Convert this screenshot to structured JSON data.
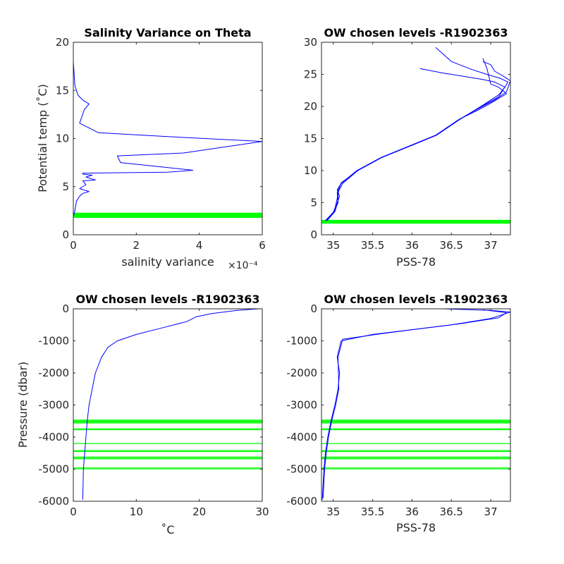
{
  "chart_data": [
    {
      "id": "p1",
      "type": "line",
      "title": "Salinity Variance on Theta",
      "xlabel": "salinity variance",
      "xlabel_exponent": "×10⁻⁴",
      "ylabel": "Potential temp (˚C)",
      "xlim": [
        0,
        6
      ],
      "ylim": [
        0,
        20
      ],
      "xticks": [
        0,
        2,
        4,
        6
      ],
      "xtick_labels": [
        "0",
        "2",
        "4",
        "6"
      ],
      "yticks": [
        0,
        5,
        10,
        15,
        20
      ],
      "ytick_labels": [
        "0",
        "5",
        "10",
        "15",
        "20"
      ],
      "line_color": "#0000ff",
      "level_color": "#00ff00",
      "series": [
        {
          "x": [
            0,
            0.05,
            0.1,
            0.2,
            0.3,
            0.5,
            0.2,
            0.4,
            0.3,
            0.7,
            0.4,
            0.6,
            0.3,
            0.3,
            3.0,
            3.8,
            1.5,
            1.4,
            3.5,
            6.0,
            3.0,
            0.8,
            0.2,
            0.35,
            0.5,
            0.3,
            0.15,
            0.05,
            0
          ],
          "y": [
            1.9,
            2.5,
            3.5,
            4.0,
            4.3,
            4.5,
            4.8,
            5.2,
            5.6,
            5.7,
            6.0,
            6.2,
            6.3,
            6.4,
            6.5,
            6.7,
            7.5,
            8.2,
            8.5,
            9.7,
            10.2,
            10.6,
            11.6,
            13.0,
            13.6,
            14.0,
            14.5,
            15.5,
            18.0
          ]
        }
      ],
      "horizontal_levels": [
        1.8,
        1.85,
        1.9,
        1.95,
        2.0,
        2.05,
        2.1,
        2.15,
        2.2,
        2.25
      ]
    },
    {
      "id": "p2",
      "type": "line",
      "title": "OW chosen levels -R1902363",
      "xlabel": "PSS-78",
      "ylabel": "",
      "xlim": [
        34.85,
        37.25
      ],
      "ylim": [
        0,
        30
      ],
      "xticks": [
        35,
        35.5,
        36,
        36.5,
        37
      ],
      "xtick_labels": [
        "35",
        "35.5",
        "36",
        "36.5",
        "37"
      ],
      "yticks": [
        0,
        5,
        10,
        15,
        20,
        25,
        30
      ],
      "ytick_labels": [
        "0",
        "5",
        "10",
        "15",
        "20",
        "25",
        "30"
      ],
      "line_color": "#0000ff",
      "level_color": "#00ff00",
      "series": [
        {
          "x": [
            34.9,
            35.0,
            35.05,
            35.08,
            35.05,
            35.1,
            35.3,
            35.6,
            36.0,
            36.3,
            36.6,
            36.85,
            37.05,
            37.2,
            37.25,
            37.15,
            37.05,
            37.0,
            36.9
          ],
          "y": [
            2.2,
            3.5,
            5.0,
            6.0,
            7.0,
            8.0,
            10.0,
            12.0,
            14.0,
            15.5,
            18.0,
            19.7,
            21.0,
            22.3,
            24.0,
            24.8,
            25.5,
            26.5,
            27.0
          ]
        },
        {
          "x": [
            34.92,
            35.02,
            35.06,
            35.06,
            35.1,
            35.32,
            35.62,
            36.02,
            36.32,
            36.62,
            36.88,
            37.1,
            37.22,
            37.12,
            36.95,
            36.75,
            36.5,
            36.3
          ],
          "y": [
            2.2,
            3.6,
            5.2,
            6.8,
            8.1,
            10.1,
            12.1,
            14.1,
            15.6,
            18.1,
            20.0,
            21.5,
            23.8,
            24.4,
            25.0,
            25.8,
            27.0,
            29.2
          ]
        },
        {
          "x": [
            34.9,
            35.01,
            35.04,
            35.07,
            35.12,
            35.31,
            35.61,
            36.01,
            36.31,
            36.61,
            36.9,
            37.1,
            37.18,
            37.05,
            36.9,
            36.6,
            36.4,
            36.1
          ],
          "y": [
            2.2,
            3.5,
            5.1,
            6.9,
            8.0,
            10.0,
            12.0,
            14.0,
            15.5,
            18.0,
            20.2,
            21.8,
            23.0,
            23.8,
            24.2,
            24.8,
            25.2,
            25.9
          ]
        },
        {
          "x": [
            34.91,
            35.0,
            35.06,
            35.05,
            35.1,
            35.3,
            35.6,
            36.0,
            36.3,
            36.6,
            36.85,
            37.0,
            37.2,
            37.1,
            37.0,
            36.95,
            36.9
          ],
          "y": [
            2.2,
            3.4,
            5.0,
            6.6,
            8.0,
            10.0,
            12.0,
            14.0,
            15.5,
            18.0,
            19.5,
            20.5,
            22.0,
            23.0,
            23.5,
            26.0,
            27.5
          ]
        }
      ],
      "horizontal_levels": [
        1.8,
        1.85,
        1.9,
        1.95,
        2.0,
        2.05,
        2.1,
        2.15,
        2.2,
        2.25
      ]
    },
    {
      "id": "p3",
      "type": "line",
      "title": "OW chosen levels -R1902363",
      "xlabel": "˚C",
      "ylabel": "Pressure (dbar)",
      "xlim": [
        0,
        30
      ],
      "ylim": [
        -6000,
        0
      ],
      "xticks": [
        0,
        10,
        20,
        30
      ],
      "xtick_labels": [
        "0",
        "10",
        "20",
        "30"
      ],
      "yticks": [
        -6000,
        -5000,
        -4000,
        -3000,
        -2000,
        -1000,
        0
      ],
      "ytick_labels": [
        "-6000",
        "-5000",
        "-4000",
        "-3000",
        "-2000",
        "-1000",
        "0"
      ],
      "line_color": "#0000ff",
      "level_color": "#00ff00",
      "series": [
        {
          "x": [
            1.5,
            1.6,
            1.8,
            2.0,
            2.2,
            2.5,
            3.0,
            3.5,
            4.5,
            5.5,
            7.0,
            10.0,
            14.0,
            18.0,
            19.5,
            22.0,
            26.0,
            29.5
          ],
          "y": [
            -5950,
            -5000,
            -4500,
            -4000,
            -3500,
            -3000,
            -2500,
            -2000,
            -1500,
            -1200,
            -1000,
            -800,
            -600,
            -400,
            -250,
            -150,
            -50,
            0
          ]
        }
      ],
      "horizontal_levels": [
        -3470,
        -3500,
        -3530,
        -3560,
        -3740,
        -3770,
        -4200,
        -4420,
        -4450,
        -4620,
        -4650,
        -4680,
        -4960,
        -4990
      ]
    },
    {
      "id": "p4",
      "type": "line",
      "title": "OW chosen levels -R1902363",
      "xlabel": "PSS-78",
      "ylabel": "",
      "xlim": [
        34.85,
        37.25
      ],
      "ylim": [
        -6000,
        0
      ],
      "xticks": [
        35,
        35.5,
        36,
        36.5,
        37
      ],
      "xtick_labels": [
        "35",
        "35.5",
        "36",
        "36.5",
        "37"
      ],
      "yticks": [
        -6000,
        -5000,
        -4000,
        -3000,
        -2000,
        -1000,
        0
      ],
      "ytick_labels": [
        "-6000",
        "-5000",
        "-4000",
        "-3000",
        "-2000",
        "-1000",
        "0"
      ],
      "line_color": "#0000ff",
      "level_color": "#00ff00",
      "series": [
        {
          "x": [
            34.86,
            34.88,
            34.9,
            34.93,
            34.97,
            35.02,
            35.06,
            35.08,
            35.05,
            35.1,
            35.5,
            36.0,
            36.5,
            37.0,
            37.25,
            37.0,
            36.4
          ],
          "y": [
            -5950,
            -5000,
            -4500,
            -4000,
            -3500,
            -3000,
            -2500,
            -2000,
            -1500,
            -1000,
            -800,
            -650,
            -500,
            -300,
            -100,
            -50,
            0
          ]
        },
        {
          "x": [
            34.87,
            34.89,
            34.91,
            34.94,
            34.98,
            35.03,
            35.07,
            35.06,
            35.12,
            35.6,
            36.1,
            36.6,
            37.1,
            37.2,
            36.9
          ],
          "y": [
            -5900,
            -5000,
            -4500,
            -4000,
            -3500,
            -3000,
            -2500,
            -1500,
            -950,
            -780,
            -620,
            -470,
            -280,
            -120,
            -30
          ]
        }
      ],
      "horizontal_levels": [
        -3470,
        -3500,
        -3530,
        -3560,
        -3740,
        -3770,
        -4200,
        -4420,
        -4450,
        -4620,
        -4650,
        -4680,
        -4960,
        -4990
      ]
    }
  ]
}
